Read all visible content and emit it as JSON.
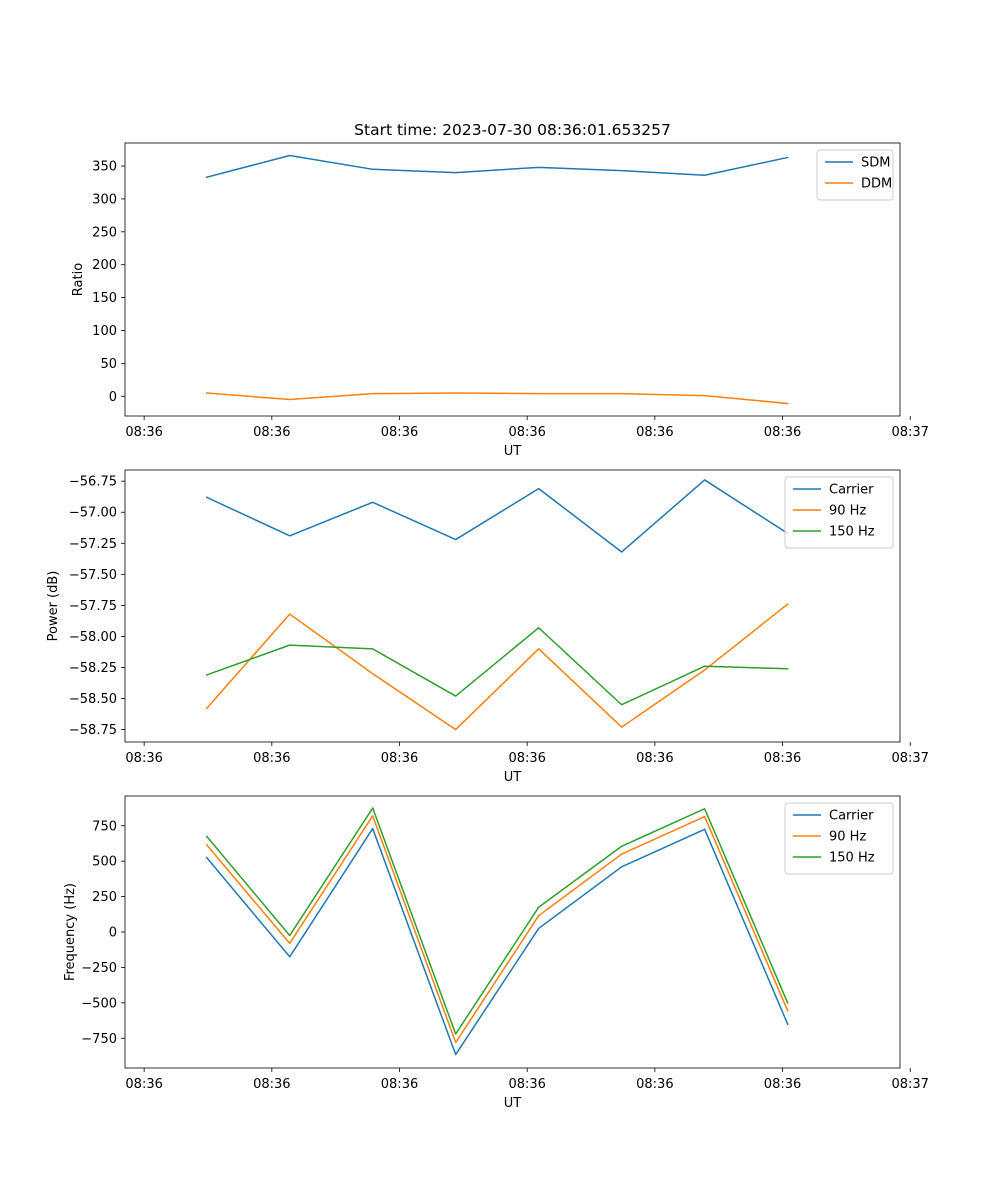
{
  "chart_data": [
    {
      "type": "line",
      "title": "Start time: 2023-07-30 08:36:01.653257",
      "xlabel": "UT",
      "ylabel": "Ratio",
      "xlim": [
        -0.15,
        5.92
      ],
      "ylim": [
        -30,
        385
      ],
      "x_ticks": [
        0,
        1,
        2,
        3,
        4,
        5,
        6
      ],
      "x_tick_labels": [
        "08:36",
        "08:36",
        "08:36",
        "08:36",
        "08:36",
        "08:36",
        "08:37"
      ],
      "y_ticks": [
        0,
        50,
        100,
        150,
        200,
        250,
        300,
        350
      ],
      "y_tick_labels": [
        "0",
        "50",
        "100",
        "150",
        "200",
        "250",
        "300",
        "350"
      ],
      "x": [
        0.49,
        1.14,
        1.79,
        2.44,
        3.09,
        3.74,
        4.39,
        5.04
      ],
      "series": [
        {
          "name": "SDM",
          "color": "#1f77b4",
          "values": [
            333,
            366,
            345,
            340,
            348,
            343,
            336,
            363
          ]
        },
        {
          "name": "DDM",
          "color": "#ff7f0e",
          "values": [
            5,
            -5,
            4,
            5,
            4,
            4,
            1,
            -11
          ]
        }
      ],
      "legend_loc": "upper right"
    },
    {
      "type": "line",
      "title": "",
      "xlabel": "UT",
      "ylabel": "Power (dB)",
      "xlim": [
        -0.15,
        5.92
      ],
      "ylim": [
        -58.85,
        -56.66
      ],
      "x_ticks": [
        0,
        1,
        2,
        3,
        4,
        5,
        6
      ],
      "x_tick_labels": [
        "08:36",
        "08:36",
        "08:36",
        "08:36",
        "08:36",
        "08:36",
        "08:37"
      ],
      "y_ticks": [
        -58.75,
        -58.5,
        -58.25,
        -58.0,
        -57.75,
        -57.5,
        -57.25,
        -57.0,
        -56.75
      ],
      "y_tick_labels": [
        "−58.75",
        "−58.50",
        "−58.25",
        "−58.00",
        "−57.75",
        "−57.50",
        "−57.25",
        "−57.00",
        "−56.75"
      ],
      "x": [
        0.49,
        1.14,
        1.79,
        2.44,
        3.09,
        3.74,
        4.39,
        5.04
      ],
      "series": [
        {
          "name": "Carrier",
          "color": "#1f77b4",
          "values": [
            -56.88,
            -57.19,
            -56.92,
            -57.22,
            -56.81,
            -57.32,
            -56.74,
            -57.17
          ]
        },
        {
          "name": "90 Hz",
          "color": "#ff7f0e",
          "values": [
            -58.58,
            -57.82,
            -58.3,
            -58.75,
            -58.1,
            -58.73,
            -58.27,
            -57.74
          ]
        },
        {
          "name": "150 Hz",
          "color": "#2ca02c",
          "values": [
            -58.31,
            -58.07,
            -58.1,
            -58.48,
            -57.93,
            -58.55,
            -58.24,
            -58.26
          ]
        }
      ],
      "legend_loc": "upper right"
    },
    {
      "type": "line",
      "title": "",
      "xlabel": "UT",
      "ylabel": "Frequency (Hz)",
      "xlim": [
        -0.15,
        5.92
      ],
      "ylim": [
        -960,
        960
      ],
      "x_ticks": [
        0,
        1,
        2,
        3,
        4,
        5,
        6
      ],
      "x_tick_labels": [
        "08:36",
        "08:36",
        "08:36",
        "08:36",
        "08:36",
        "08:36",
        "08:37"
      ],
      "y_ticks": [
        -750,
        -500,
        -250,
        0,
        250,
        500,
        750
      ],
      "y_tick_labels": [
        "−750",
        "−500",
        "−250",
        "0",
        "250",
        "500",
        "750"
      ],
      "x": [
        0.49,
        1.14,
        1.79,
        2.44,
        3.09,
        3.74,
        4.39,
        5.04
      ],
      "series": [
        {
          "name": "Carrier",
          "color": "#1f77b4",
          "values": [
            525,
            -175,
            730,
            -865,
            25,
            460,
            725,
            -650
          ]
        },
        {
          "name": "90 Hz",
          "color": "#ff7f0e",
          "values": [
            615,
            -80,
            820,
            -780,
            115,
            550,
            815,
            -555
          ]
        },
        {
          "name": "150 Hz",
          "color": "#2ca02c",
          "values": [
            675,
            -25,
            875,
            -720,
            175,
            605,
            870,
            -500
          ]
        }
      ],
      "legend_loc": "upper right"
    }
  ]
}
